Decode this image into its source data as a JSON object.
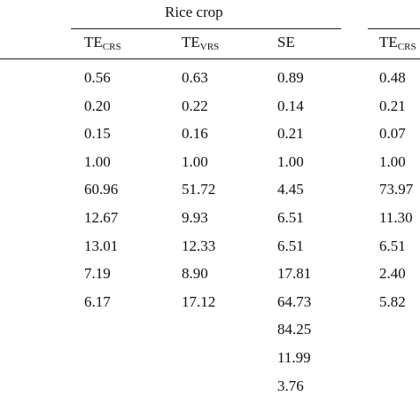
{
  "table": {
    "group_title": "Rice crop",
    "columns": [
      {
        "main": "TE",
        "sub": "CRS"
      },
      {
        "main": "TE",
        "sub": "VRS"
      },
      {
        "main": "SE",
        "sub": null
      },
      {
        "main": "TE",
        "sub": "CRS"
      }
    ],
    "rows": [
      [
        "0.56",
        "0.63",
        "0.89",
        "0.48"
      ],
      [
        "0.20",
        "0.22",
        "0.14",
        "0.21"
      ],
      [
        "0.15",
        "0.16",
        "0.21",
        "0.07"
      ],
      [
        "1.00",
        "1.00",
        "1.00",
        "1.00"
      ],
      [
        "60.96",
        "51.72",
        "4.45",
        "73.97"
      ],
      [
        "12.67",
        "9.93",
        "6.51",
        "11.30"
      ],
      [
        "13.01",
        "12.33",
        "6.51",
        "6.51"
      ],
      [
        "7.19",
        "8.90",
        "17.81",
        "2.40"
      ],
      [
        "6.17",
        "17.12",
        "64.73",
        "5.82"
      ],
      [
        null,
        null,
        "84.25",
        null
      ],
      [
        null,
        null,
        "11.99",
        null
      ],
      [
        null,
        null,
        "3.76",
        null
      ]
    ]
  }
}
